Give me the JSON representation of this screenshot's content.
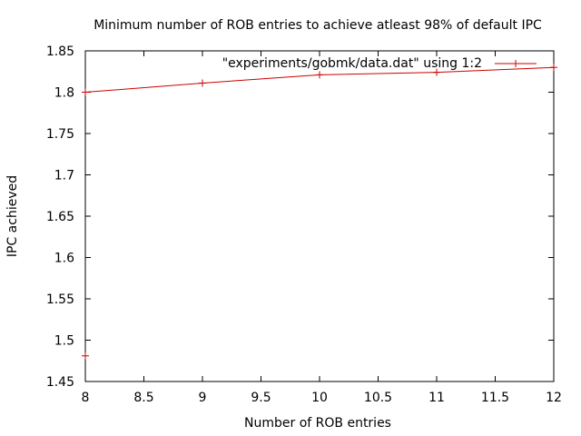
{
  "chart_data": {
    "type": "line",
    "title": "Minimum number of ROB entries to achieve atleast 98% of default IPC",
    "xlabel": "Number of ROB entries",
    "ylabel": "IPC achieved",
    "xlim": [
      8,
      12
    ],
    "ylim": [
      1.45,
      1.85
    ],
    "x_ticks": [
      "8",
      "8.5",
      "9",
      "9.5",
      "10",
      "10.5",
      "11",
      "11.5",
      "12"
    ],
    "y_ticks": [
      "1.45",
      "1.5",
      "1.55",
      "1.6",
      "1.65",
      "1.7",
      "1.75",
      "1.8",
      "1.85"
    ],
    "grid": false,
    "legend_position": "top-right",
    "series": [
      {
        "name": "\"experiments/gobmk/data.dat\" using 1:2",
        "color": "#cc0000",
        "marker": "plus",
        "points": [
          {
            "x": 8,
            "y": 1.8
          },
          {
            "x": 9,
            "y": 1.811
          },
          {
            "x": 10,
            "y": 1.821
          },
          {
            "x": 11,
            "y": 1.824
          },
          {
            "x": 12,
            "y": 1.83
          }
        ]
      }
    ],
    "extra_markers": [
      {
        "x": 8,
        "y": 1.481
      }
    ]
  }
}
